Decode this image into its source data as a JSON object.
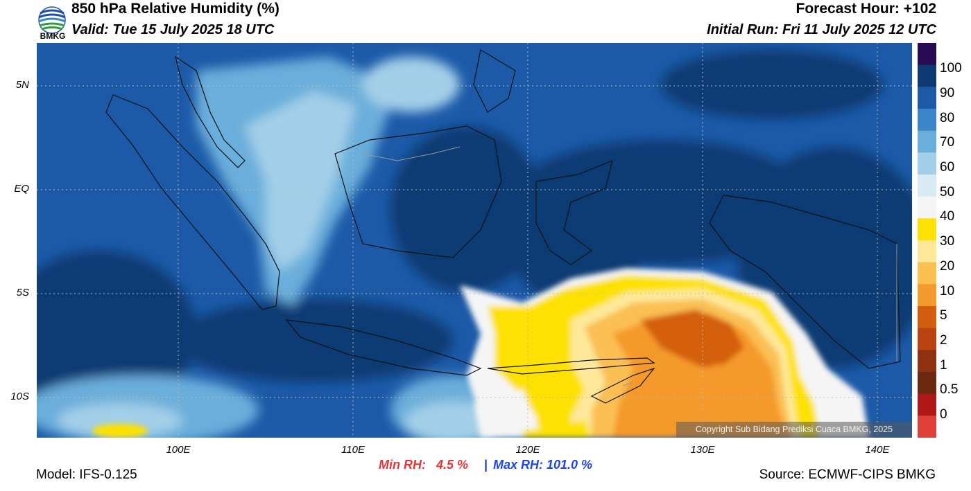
{
  "header": {
    "title": "850 hPa Relative Humidity (%)",
    "valid": "Valid: Tue 15 July 2025 18 UTC",
    "forecast_hour": "Forecast Hour: +102",
    "initial_run": "Initial Run: Fri 11 July 2025 12 UTC",
    "logo_text": "BMKG"
  },
  "map": {
    "lat_labels": [
      "5N",
      "EQ",
      "5S",
      "10S"
    ],
    "lon_labels": [
      "100E",
      "110E",
      "120E",
      "130E",
      "140E"
    ],
    "copyright": "Copyright Sub Bidang Prediksi Cuaca BMKG, 2025",
    "colors": {
      "very_humid": "#0d3a73",
      "humid": "#1c5aa8",
      "moist": "#3a86c8",
      "mid": "#6aaedb",
      "light": "#a3cfe8",
      "pale": "#d8ebf5",
      "neutral": "#f5f5f5",
      "dry_yellow": "#fde100",
      "dry_light": "#fde89a",
      "dry_orange": "#fbbf52",
      "very_dry": "#f59a2c",
      "extreme_dry": "#d45e10",
      "coast": "#111111",
      "border": "#999999"
    }
  },
  "colorbar": {
    "labels": [
      "100",
      "90",
      "80",
      "70",
      "60",
      "50",
      "40",
      "30",
      "20",
      "10",
      "5",
      "2",
      "1",
      "0.5",
      "0"
    ],
    "colors": [
      "#2a0a52",
      "#0d3a73",
      "#1c5aa8",
      "#3a86c8",
      "#6aaedb",
      "#a3cfe8",
      "#d8ebf5",
      "#f5f5f5",
      "#fde100",
      "#fde89a",
      "#fbbf52",
      "#f59a2c",
      "#d45e10",
      "#b84210",
      "#8f3010",
      "#6b2a10",
      "#b01818",
      "#e0403a"
    ]
  },
  "footer": {
    "min_rh": "Min RH:   4.5 %",
    "separator": "|",
    "max_rh": "Max RH: 101.0 %",
    "model": "Model: IFS-0.125",
    "source": "Source: ECMWF-CIPS BMKG"
  }
}
